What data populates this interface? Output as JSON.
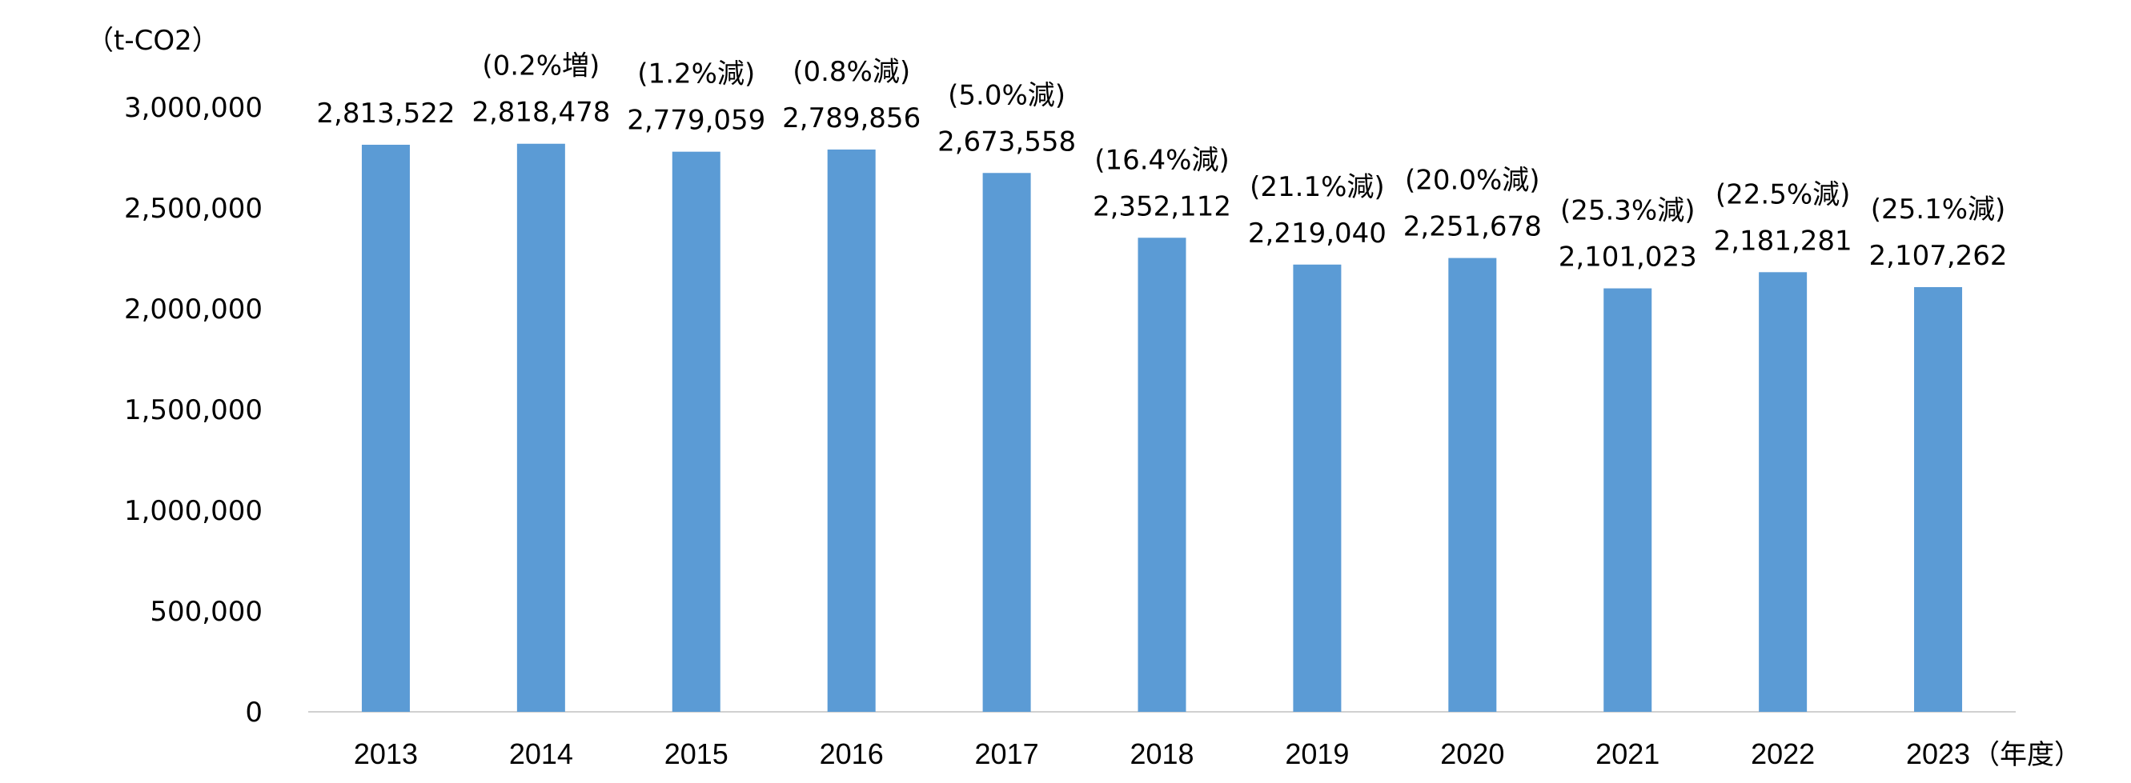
{
  "chart_data": {
    "type": "bar",
    "y_unit_label": "（t-CO2）",
    "x_unit_label": "（年度）",
    "categories": [
      "2013",
      "2014",
      "2015",
      "2016",
      "2017",
      "2018",
      "2019",
      "2020",
      "2021",
      "2022",
      "2023"
    ],
    "values": [
      2813522,
      2818478,
      2779059,
      2789856,
      2673558,
      2352112,
      2219040,
      2251678,
      2101023,
      2181281,
      2107262
    ],
    "value_labels": [
      "2,813,522",
      "2,818,478",
      "2,779,059",
      "2,789,856",
      "2,673,558",
      "2,352,112",
      "2,219,040",
      "2,251,678",
      "2,101,023",
      "2,181,281",
      "2,107,262"
    ],
    "change_labels": [
      "",
      "(0.2%増)",
      "(1.2%減)",
      "(0.8%減)",
      "(5.0%減)",
      "(16.4%減)",
      "(21.1%減)",
      "(20.0%減)",
      "(25.3%減)",
      "(22.5%減)",
      "(25.1%減)"
    ],
    "ylim": [
      0,
      3000000
    ],
    "yticks": [
      0,
      500000,
      1000000,
      1500000,
      2000000,
      2500000,
      3000000
    ],
    "ytick_labels": [
      "0",
      "500,000",
      "1,000,000",
      "1,500,000",
      "2,000,000",
      "2,500,000",
      "3,000,000"
    ],
    "bar_color": "#5B9BD5",
    "grid": false,
    "legend": "none"
  }
}
